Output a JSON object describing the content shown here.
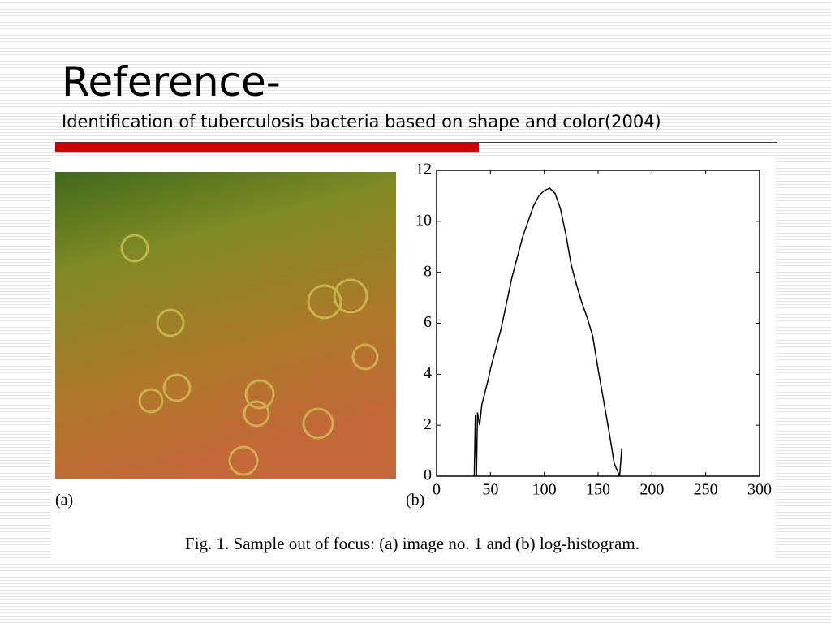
{
  "header": {
    "title": "Reference-",
    "subtitle": "Identification of tuberculosis bacteria based on shape and color(2004)"
  },
  "figure": {
    "label_a": "(a)",
    "label_b": "(b)",
    "caption": "Fig. 1.  Sample out of focus: (a) image no. 1 and (b) log-histogram."
  },
  "chart_data": {
    "type": "line",
    "color": "#000000",
    "x": [
      35,
      36,
      37,
      38,
      40,
      42,
      45,
      48,
      50,
      55,
      60,
      65,
      70,
      75,
      80,
      85,
      90,
      95,
      100,
      105,
      110,
      115,
      120,
      125,
      130,
      135,
      140,
      145,
      150,
      155,
      160,
      165,
      170,
      172
    ],
    "values": [
      0,
      2.4,
      0,
      2.5,
      2.0,
      2.8,
      3.3,
      3.8,
      4.2,
      5.0,
      5.8,
      6.8,
      7.8,
      8.6,
      9.4,
      10.0,
      10.6,
      11.0,
      11.2,
      11.3,
      11.1,
      10.5,
      9.5,
      8.3,
      7.5,
      6.8,
      6.2,
      5.5,
      4.2,
      3.0,
      1.8,
      0.5,
      0,
      1.1
    ],
    "xlim": [
      0,
      300
    ],
    "xticks": [
      0,
      50,
      100,
      150,
      200,
      250,
      300
    ],
    "ylim": [
      0,
      12
    ],
    "yticks": [
      0,
      2,
      4,
      6,
      8,
      10,
      12
    ]
  }
}
